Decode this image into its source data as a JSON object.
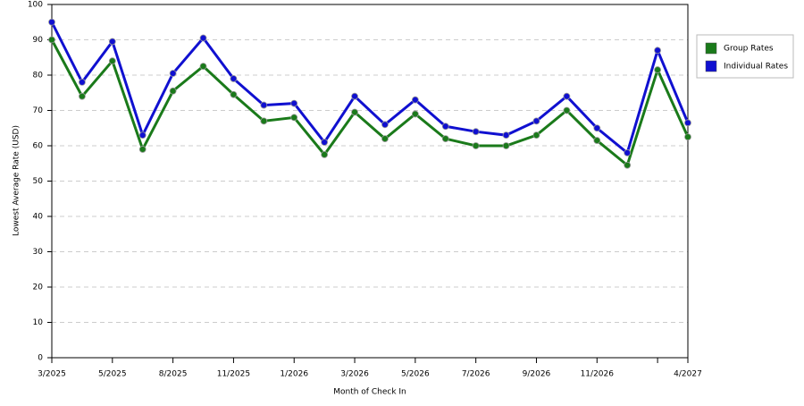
{
  "chart_data": {
    "type": "line",
    "x_label": "Month of Check In",
    "y_label": "Lowest Average Rate (USD)",
    "categories": [
      "3/2025",
      null,
      "5/2025",
      null,
      "8/2025",
      null,
      "11/2025",
      null,
      "1/2026",
      null,
      "3/2026",
      null,
      "5/2026",
      null,
      "7/2026",
      null,
      "9/2026",
      null,
      "11/2026",
      null,
      null,
      "4/2027"
    ],
    "series": [
      {
        "name": "Group Rates",
        "color": "#1a7a1a",
        "values": [
          90,
          74,
          84,
          59,
          75.5,
          82.5,
          74.5,
          67,
          68,
          57.5,
          69.5,
          62,
          69,
          62,
          60,
          60,
          63,
          70,
          61.5,
          54.5,
          81.5,
          62.5
        ]
      },
      {
        "name": "Individual Rates",
        "color": "#1010d0",
        "values": [
          95,
          78,
          89.5,
          63,
          80.5,
          90.5,
          79,
          71.5,
          72,
          61,
          74,
          66,
          73,
          65.5,
          64,
          63,
          67,
          74,
          65,
          58,
          87,
          66.5
        ]
      }
    ],
    "ylim": [
      0,
      100
    ],
    "yticks": [
      0,
      10,
      20,
      30,
      40,
      50,
      60,
      70,
      80,
      90,
      100
    ],
    "grid": true
  }
}
